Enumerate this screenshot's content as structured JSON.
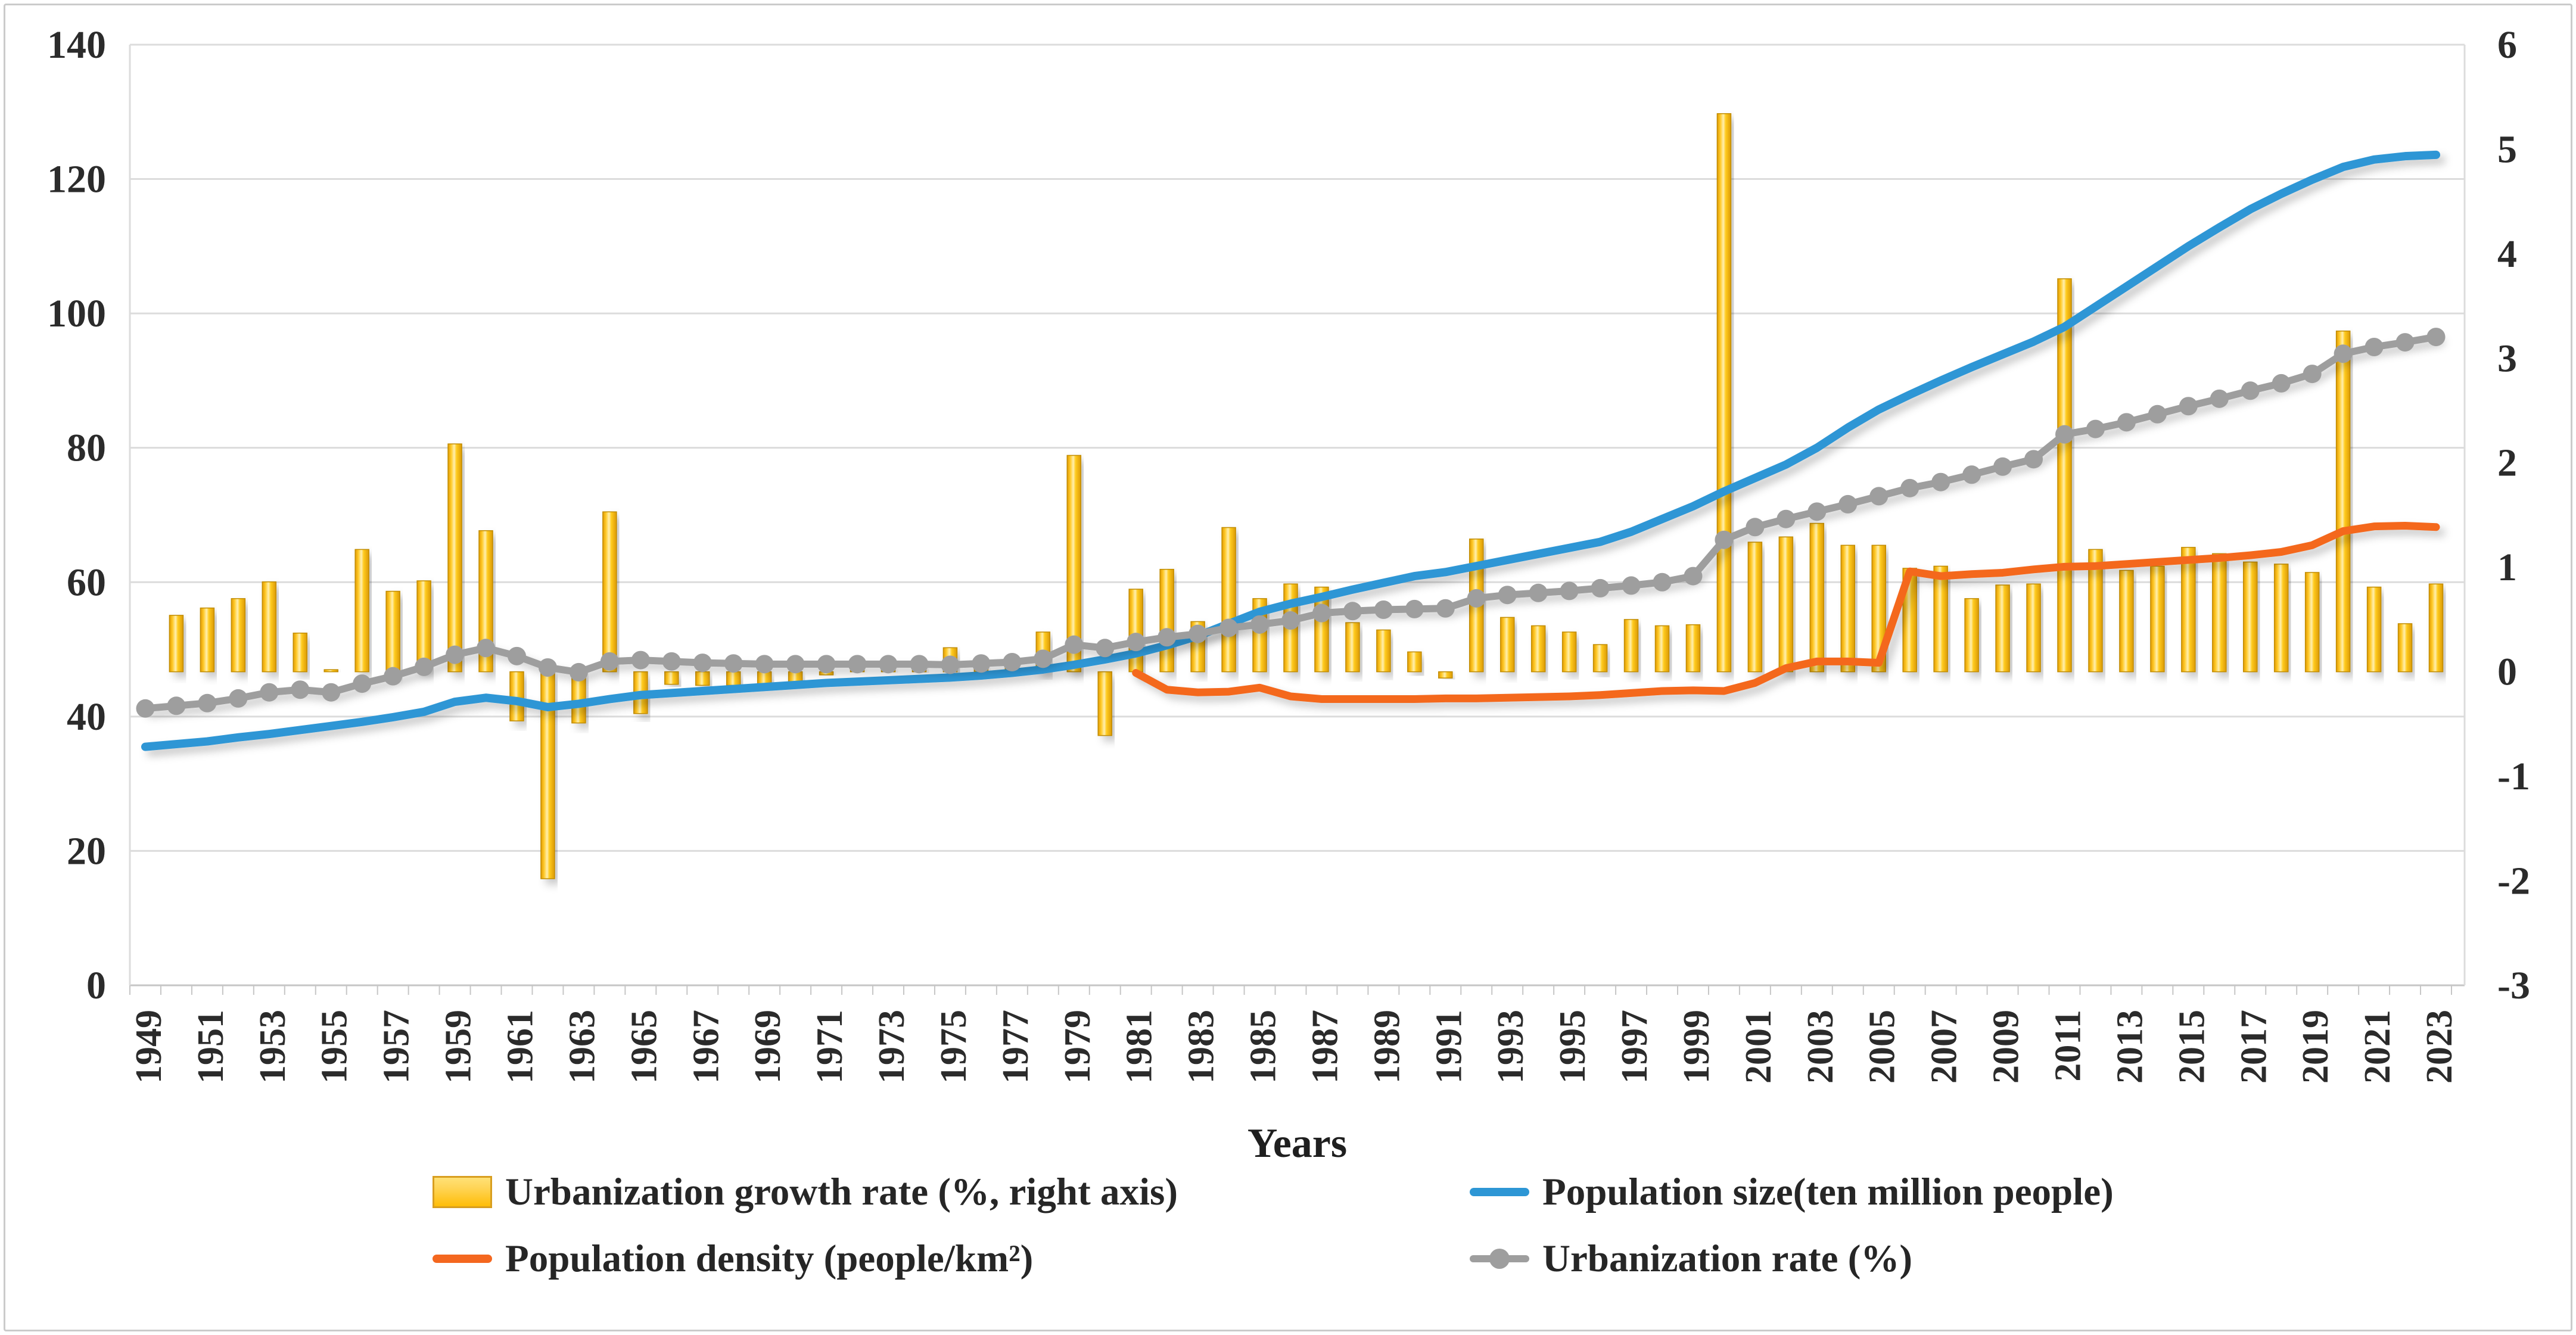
{
  "chart_data": {
    "type": "combo-bar-line",
    "title": "",
    "xlabel": "Years",
    "year_start": 1949,
    "year_end": 2023,
    "x_tick_labels": [
      "1949",
      "1951",
      "1953",
      "1955",
      "1957",
      "1959",
      "1961",
      "1963",
      "1965",
      "1967",
      "1969",
      "1971",
      "1973",
      "1975",
      "1977",
      "1979",
      "1981",
      "1983",
      "1985",
      "1987",
      "1989",
      "1991",
      "1993",
      "1995",
      "1997",
      "1999",
      "2001",
      "2003",
      "2005",
      "2007",
      "2009",
      "2011",
      "2013",
      "2015",
      "2017",
      "2019",
      "2021",
      "2023"
    ],
    "left_axis": {
      "min": 0,
      "max": 140,
      "step": 20,
      "ticks": [
        0,
        20,
        40,
        60,
        80,
        100,
        120,
        140
      ]
    },
    "right_axis": {
      "min": -3,
      "max": 6,
      "step": 1,
      "ticks": [
        6,
        5,
        4,
        3,
        2,
        1,
        0,
        -1,
        -2,
        -3
      ]
    },
    "grid": true,
    "legend_position": "bottom",
    "colors": {
      "bar_main": "#ffc208",
      "bar_light": "#ffefaf",
      "bar_dark": "#e19b06",
      "bar_border": "#c18c00",
      "blue": "#2d96d5",
      "orange": "#f4671f",
      "gray": "#9e9e9e",
      "grid": "#dcdcdc",
      "axis": "#c2c2c2",
      "text": "#2b2b2b"
    },
    "series": [
      {
        "name": "Urbanization growth rate (%, right axis)",
        "type": "bar",
        "axis": "right",
        "values": [
          null,
          0.54,
          0.61,
          0.7,
          0.86,
          0.37,
          0.02,
          1.17,
          0.77,
          0.87,
          2.18,
          1.35,
          -0.47,
          -1.98,
          -0.49,
          1.53,
          -0.4,
          -0.12,
          -0.13,
          -0.13,
          -0.13,
          -0.13,
          -0.03,
          0.02,
          0.03,
          0.05,
          0.23,
          0.04,
          0.04,
          0.38,
          2.07,
          -0.61,
          0.79,
          0.98,
          0.48,
          1.38,
          0.7,
          0.84,
          0.81,
          0.47,
          0.4,
          0.19,
          -0.06,
          1.27,
          0.52,
          0.44,
          0.38,
          0.26,
          0.5,
          0.44,
          0.45,
          5.34,
          1.24,
          1.29,
          1.42,
          1.21,
          1.21,
          0.99,
          1.01,
          0.7,
          0.83,
          0.84,
          3.76,
          1.17,
          0.97,
          1.01,
          1.19,
          1.13,
          1.05,
          1.03,
          0.95,
          3.26,
          0.81,
          0.46,
          0.84
        ]
      },
      {
        "name": "Population size(ten million people)",
        "type": "line",
        "axis": "left",
        "values": [
          35.5,
          35.9,
          36.3,
          36.9,
          37.4,
          38.0,
          38.6,
          39.2,
          39.9,
          40.7,
          42.2,
          42.8,
          42.3,
          41.4,
          41.9,
          42.6,
          43.2,
          43.5,
          43.8,
          44.1,
          44.4,
          44.7,
          45.0,
          45.2,
          45.4,
          45.6,
          45.8,
          46.1,
          46.5,
          47.0,
          47.7,
          48.5,
          49.4,
          50.6,
          52.0,
          53.8,
          55.6,
          56.8,
          57.8,
          58.9,
          59.9,
          60.9,
          61.5,
          62.4,
          63.3,
          64.2,
          65.1,
          66.0,
          67.5,
          69.4,
          71.3,
          73.5,
          75.5,
          77.5,
          80.0,
          83.0,
          85.7,
          87.9,
          90.0,
          92.0,
          93.9,
          95.8,
          98.0,
          101.0,
          104.0,
          107.0,
          110.0,
          112.8,
          115.5,
          117.8,
          119.9,
          121.8,
          122.9,
          123.4,
          123.6
        ]
      },
      {
        "name": "Population density (people/km²)",
        "type": "line",
        "axis": "left",
        "values": [
          null,
          null,
          null,
          null,
          null,
          null,
          null,
          null,
          null,
          null,
          null,
          null,
          null,
          null,
          null,
          null,
          null,
          null,
          null,
          null,
          null,
          null,
          null,
          null,
          null,
          null,
          null,
          null,
          null,
          null,
          null,
          null,
          46.5,
          44.0,
          43.6,
          43.7,
          44.3,
          43.0,
          42.6,
          42.6,
          42.6,
          42.6,
          42.7,
          42.7,
          42.8,
          42.9,
          43.0,
          43.2,
          43.5,
          43.8,
          43.9,
          43.8,
          45.0,
          47.2,
          48.2,
          48.2,
          48.0,
          61.6,
          60.9,
          61.2,
          61.4,
          61.9,
          62.3,
          62.4,
          62.7,
          63.0,
          63.3,
          63.6,
          64.0,
          64.5,
          65.5,
          67.6,
          68.3,
          68.4,
          68.2
        ]
      },
      {
        "name": "Urbanization rate (%)",
        "type": "line-marker",
        "axis": "left",
        "values": [
          41.2,
          41.6,
          42.0,
          42.7,
          43.6,
          44.0,
          43.6,
          44.9,
          46.0,
          47.4,
          49.2,
          50.2,
          49.0,
          47.3,
          46.6,
          48.2,
          48.4,
          48.2,
          48.0,
          47.9,
          47.8,
          47.8,
          47.8,
          47.8,
          47.8,
          47.8,
          47.7,
          47.9,
          48.1,
          48.6,
          50.7,
          50.2,
          51.1,
          51.8,
          52.3,
          53.2,
          53.7,
          54.3,
          55.4,
          55.7,
          55.9,
          56.0,
          56.1,
          57.6,
          58.1,
          58.4,
          58.7,
          59.1,
          59.5,
          60.0,
          60.9,
          66.3,
          68.2,
          69.4,
          70.5,
          71.6,
          72.8,
          74.0,
          74.9,
          76.0,
          77.2,
          78.3,
          82.0,
          82.8,
          83.8,
          85.0,
          86.2,
          87.3,
          88.5,
          89.6,
          91.0,
          94.0,
          95.0,
          95.7,
          96.5
        ]
      }
    ]
  }
}
